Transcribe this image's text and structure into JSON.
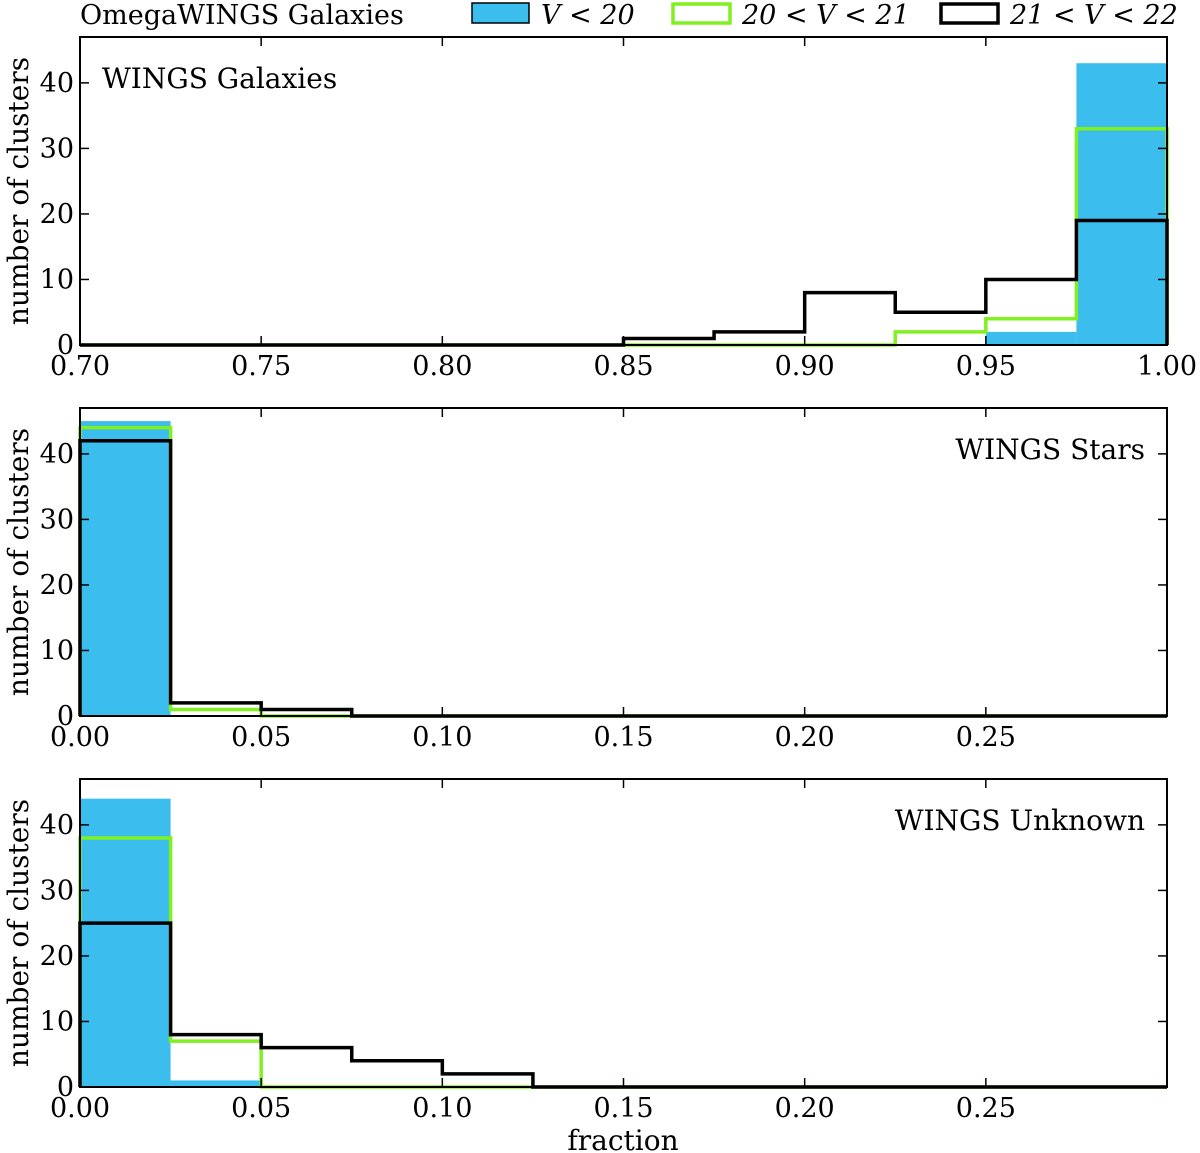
{
  "legend": {
    "title": "OmegaWINGS Galaxies",
    "entries": [
      {
        "label": "V < 20",
        "style": "filled",
        "color": "#3bbdee"
      },
      {
        "label": "20 < V < 21",
        "style": "step",
        "color": "#80f020"
      },
      {
        "label": "21 < V < 22",
        "style": "step",
        "color": "#000000"
      }
    ]
  },
  "colors": {
    "filled": "#3bbdee",
    "green": "#80f020",
    "black": "#000000"
  },
  "chart_data": [
    {
      "type": "histogram",
      "title": "WINGS Galaxies",
      "title_position": "top-left",
      "xlabel": "",
      "ylabel": "number of clusters",
      "xlim": [
        0.7,
        1.0
      ],
      "ylim": [
        0,
        47
      ],
      "xticks": [
        "0.70",
        "0.75",
        "0.80",
        "0.85",
        "0.90",
        "0.95",
        "1.00"
      ],
      "xtick_values": [
        0.7,
        0.75,
        0.8,
        0.85,
        0.9,
        0.95,
        1.0
      ],
      "yticks": [
        "0",
        "10",
        "20",
        "30",
        "40"
      ],
      "ytick_values": [
        0,
        10,
        20,
        30,
        40
      ],
      "bin_edges": [
        0.7,
        0.725,
        0.75,
        0.775,
        0.8,
        0.825,
        0.85,
        0.875,
        0.9,
        0.925,
        0.95,
        0.975,
        1.0
      ],
      "series": [
        {
          "name": "V < 20",
          "style": "filled",
          "values": [
            0,
            0,
            0,
            0,
            0,
            0,
            0,
            0,
            0,
            0,
            2,
            43
          ]
        },
        {
          "name": "20 < V < 21",
          "style": "step",
          "values": [
            0,
            0,
            0,
            0,
            0,
            0,
            0,
            0,
            0,
            2,
            4,
            33
          ]
        },
        {
          "name": "21 < V < 22",
          "style": "step",
          "values": [
            0,
            0,
            0,
            0,
            0,
            0,
            1,
            2,
            8,
            5,
            10,
            19
          ]
        }
      ]
    },
    {
      "type": "histogram",
      "title": "WINGS Stars",
      "title_position": "top-right",
      "xlabel": "",
      "ylabel": "number of clusters",
      "xlim": [
        0.0,
        0.3
      ],
      "ylim": [
        0,
        47
      ],
      "xticks": [
        "0.00",
        "0.05",
        "0.10",
        "0.15",
        "0.20",
        "0.25"
      ],
      "xtick_values": [
        0.0,
        0.05,
        0.1,
        0.15,
        0.2,
        0.25
      ],
      "yticks": [
        "0",
        "10",
        "20",
        "30",
        "40"
      ],
      "ytick_values": [
        0,
        10,
        20,
        30,
        40
      ],
      "bin_edges": [
        0.0,
        0.025,
        0.05,
        0.075,
        0.1,
        0.125,
        0.15,
        0.175,
        0.2,
        0.225,
        0.25,
        0.275,
        0.3
      ],
      "series": [
        {
          "name": "V < 20",
          "style": "filled",
          "values": [
            45,
            0,
            0,
            0,
            0,
            0,
            0,
            0,
            0,
            0,
            0,
            0
          ]
        },
        {
          "name": "20 < V < 21",
          "style": "step",
          "values": [
            44,
            1,
            0,
            0,
            0,
            0,
            0,
            0,
            0,
            0,
            0,
            0
          ]
        },
        {
          "name": "21 < V < 22",
          "style": "step",
          "values": [
            42,
            2,
            1,
            0,
            0,
            0,
            0,
            0,
            0,
            0,
            0,
            0
          ]
        }
      ]
    },
    {
      "type": "histogram",
      "title": "WINGS Unknown",
      "title_position": "top-right",
      "xlabel": "fraction",
      "ylabel": "number of clusters",
      "xlim": [
        0.0,
        0.3
      ],
      "ylim": [
        0,
        47
      ],
      "xticks": [
        "0.00",
        "0.05",
        "0.10",
        "0.15",
        "0.20",
        "0.25"
      ],
      "xtick_values": [
        0.0,
        0.05,
        0.1,
        0.15,
        0.2,
        0.25
      ],
      "yticks": [
        "0",
        "10",
        "20",
        "30",
        "40"
      ],
      "ytick_values": [
        0,
        10,
        20,
        30,
        40
      ],
      "bin_edges": [
        0.0,
        0.025,
        0.05,
        0.075,
        0.1,
        0.125,
        0.15,
        0.175,
        0.2,
        0.225,
        0.25,
        0.275,
        0.3
      ],
      "series": [
        {
          "name": "V < 20",
          "style": "filled",
          "values": [
            44,
            1,
            0,
            0,
            0,
            0,
            0,
            0,
            0,
            0,
            0,
            0
          ]
        },
        {
          "name": "20 < V < 21",
          "style": "step",
          "values": [
            38,
            7,
            0,
            0,
            0,
            0,
            0,
            0,
            0,
            0,
            0,
            0
          ]
        },
        {
          "name": "21 < V < 22",
          "style": "step",
          "values": [
            25,
            8,
            6,
            4,
            2,
            0,
            0,
            0,
            0,
            0,
            0,
            0
          ]
        }
      ]
    }
  ]
}
